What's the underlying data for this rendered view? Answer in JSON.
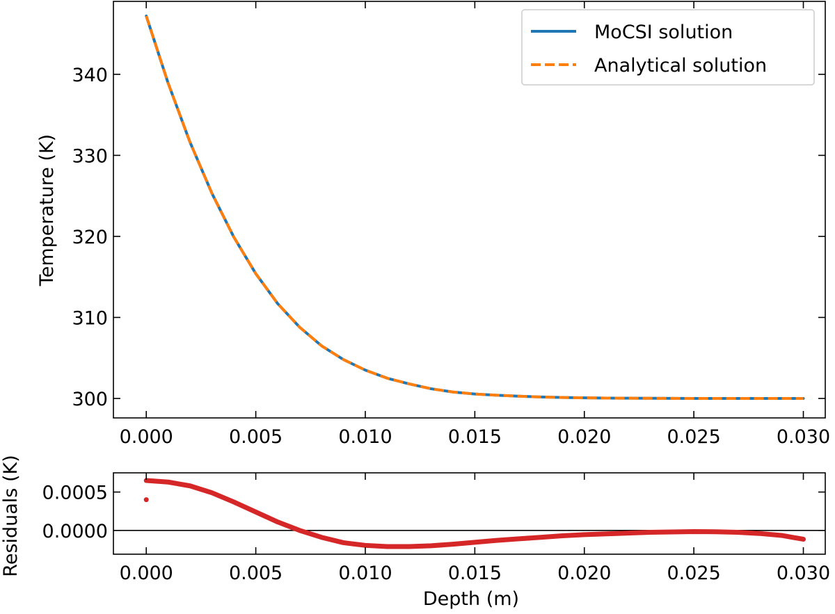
{
  "chart_data": [
    {
      "type": "line",
      "panel": "top",
      "xlabel": "",
      "ylabel": "Temperature (K)",
      "xlim": [
        -0.0015,
        0.031
      ],
      "ylim": [
        297.6,
        349.0
      ],
      "xticks": [
        "0.000",
        "0.005",
        "0.010",
        "0.015",
        "0.020",
        "0.025",
        "0.030"
      ],
      "xtick_values": [
        0,
        0.005,
        0.01,
        0.015,
        0.02,
        0.025,
        0.03
      ],
      "yticks": [
        "300",
        "310",
        "320",
        "330",
        "340"
      ],
      "ytick_values": [
        300,
        310,
        320,
        330,
        340
      ],
      "legend": "top-right",
      "grid": false,
      "series": [
        {
          "name": "MoCSI solution",
          "style": "solid",
          "color": "#1f77b4",
          "x": [
            0,
            0.001,
            0.002,
            0.003,
            0.004,
            0.005,
            0.006,
            0.007,
            0.008,
            0.009,
            0.01,
            0.011,
            0.012,
            0.013,
            0.014,
            0.015,
            0.016,
            0.017,
            0.018,
            0.019,
            0.02,
            0.021,
            0.022,
            0.023,
            0.024,
            0.025,
            0.026,
            0.027,
            0.028,
            0.029,
            0.03
          ],
          "y": [
            347.2,
            338.9,
            331.6,
            325.3,
            319.9,
            315.4,
            311.7,
            308.8,
            306.5,
            304.8,
            303.5,
            302.5,
            301.8,
            301.2,
            300.8,
            300.55,
            300.4,
            300.28,
            300.18,
            300.12,
            300.08,
            300.05,
            300.03,
            300.02,
            300.01,
            300.0,
            300.0,
            300.0,
            300.0,
            300.0,
            300.0
          ]
        },
        {
          "name": "Analytical solution",
          "style": "dashed",
          "color": "#ff7f0e",
          "x": [
            0,
            0.001,
            0.002,
            0.003,
            0.004,
            0.005,
            0.006,
            0.007,
            0.008,
            0.009,
            0.01,
            0.011,
            0.012,
            0.013,
            0.014,
            0.015,
            0.016,
            0.017,
            0.018,
            0.019,
            0.02,
            0.021,
            0.022,
            0.023,
            0.024,
            0.025,
            0.026,
            0.027,
            0.028,
            0.029,
            0.03
          ],
          "y": [
            347.2,
            338.9,
            331.6,
            325.3,
            319.9,
            315.4,
            311.7,
            308.8,
            306.5,
            304.8,
            303.5,
            302.5,
            301.8,
            301.2,
            300.8,
            300.55,
            300.4,
            300.28,
            300.18,
            300.12,
            300.08,
            300.05,
            300.03,
            300.02,
            300.01,
            300.0,
            300.0,
            300.0,
            300.0,
            300.0,
            300.0
          ]
        }
      ]
    },
    {
      "type": "line",
      "panel": "bottom",
      "xlabel": "Depth (m)",
      "ylabel": "Residuals (K)",
      "xlim": [
        -0.0015,
        0.031
      ],
      "ylim": [
        -0.00031,
        0.00075
      ],
      "xticks": [
        "0.000",
        "0.005",
        "0.010",
        "0.015",
        "0.020",
        "0.025",
        "0.030"
      ],
      "xtick_values": [
        0,
        0.005,
        0.01,
        0.015,
        0.02,
        0.025,
        0.03
      ],
      "yticks": [
        "0.0000",
        "0.0005"
      ],
      "ytick_values": [
        0,
        0.0005
      ],
      "zero_line": true,
      "grid": false,
      "series": [
        {
          "color": "#d62728",
          "style": "thick",
          "x": [
            0,
            0.001,
            0.002,
            0.003,
            0.004,
            0.005,
            0.006,
            0.007,
            0.008,
            0.009,
            0.01,
            0.011,
            0.012,
            0.013,
            0.014,
            0.015,
            0.016,
            0.017,
            0.018,
            0.019,
            0.02,
            0.021,
            0.022,
            0.023,
            0.024,
            0.025,
            0.026,
            0.027,
            0.028,
            0.029,
            0.03
          ],
          "y": [
            0.00065,
            0.00063,
            0.00058,
            0.00049,
            0.00037,
            0.00024,
            0.00011,
            0.0,
            -9e-05,
            -0.00016,
            -0.000195,
            -0.00021,
            -0.00021,
            -0.0002,
            -0.00018,
            -0.000155,
            -0.00013,
            -0.00011,
            -9e-05,
            -7e-05,
            -5.5e-05,
            -4.5e-05,
            -3.5e-05,
            -2.5e-05,
            -2e-05,
            -1.5e-05,
            -1.8e-05,
            -2.5e-05,
            -4e-05,
            -6.5e-05,
            -0.000115
          ]
        },
        {
          "color": "#d62728",
          "style": "point",
          "x": [
            0
          ],
          "y": [
            0.0004
          ]
        }
      ]
    }
  ]
}
